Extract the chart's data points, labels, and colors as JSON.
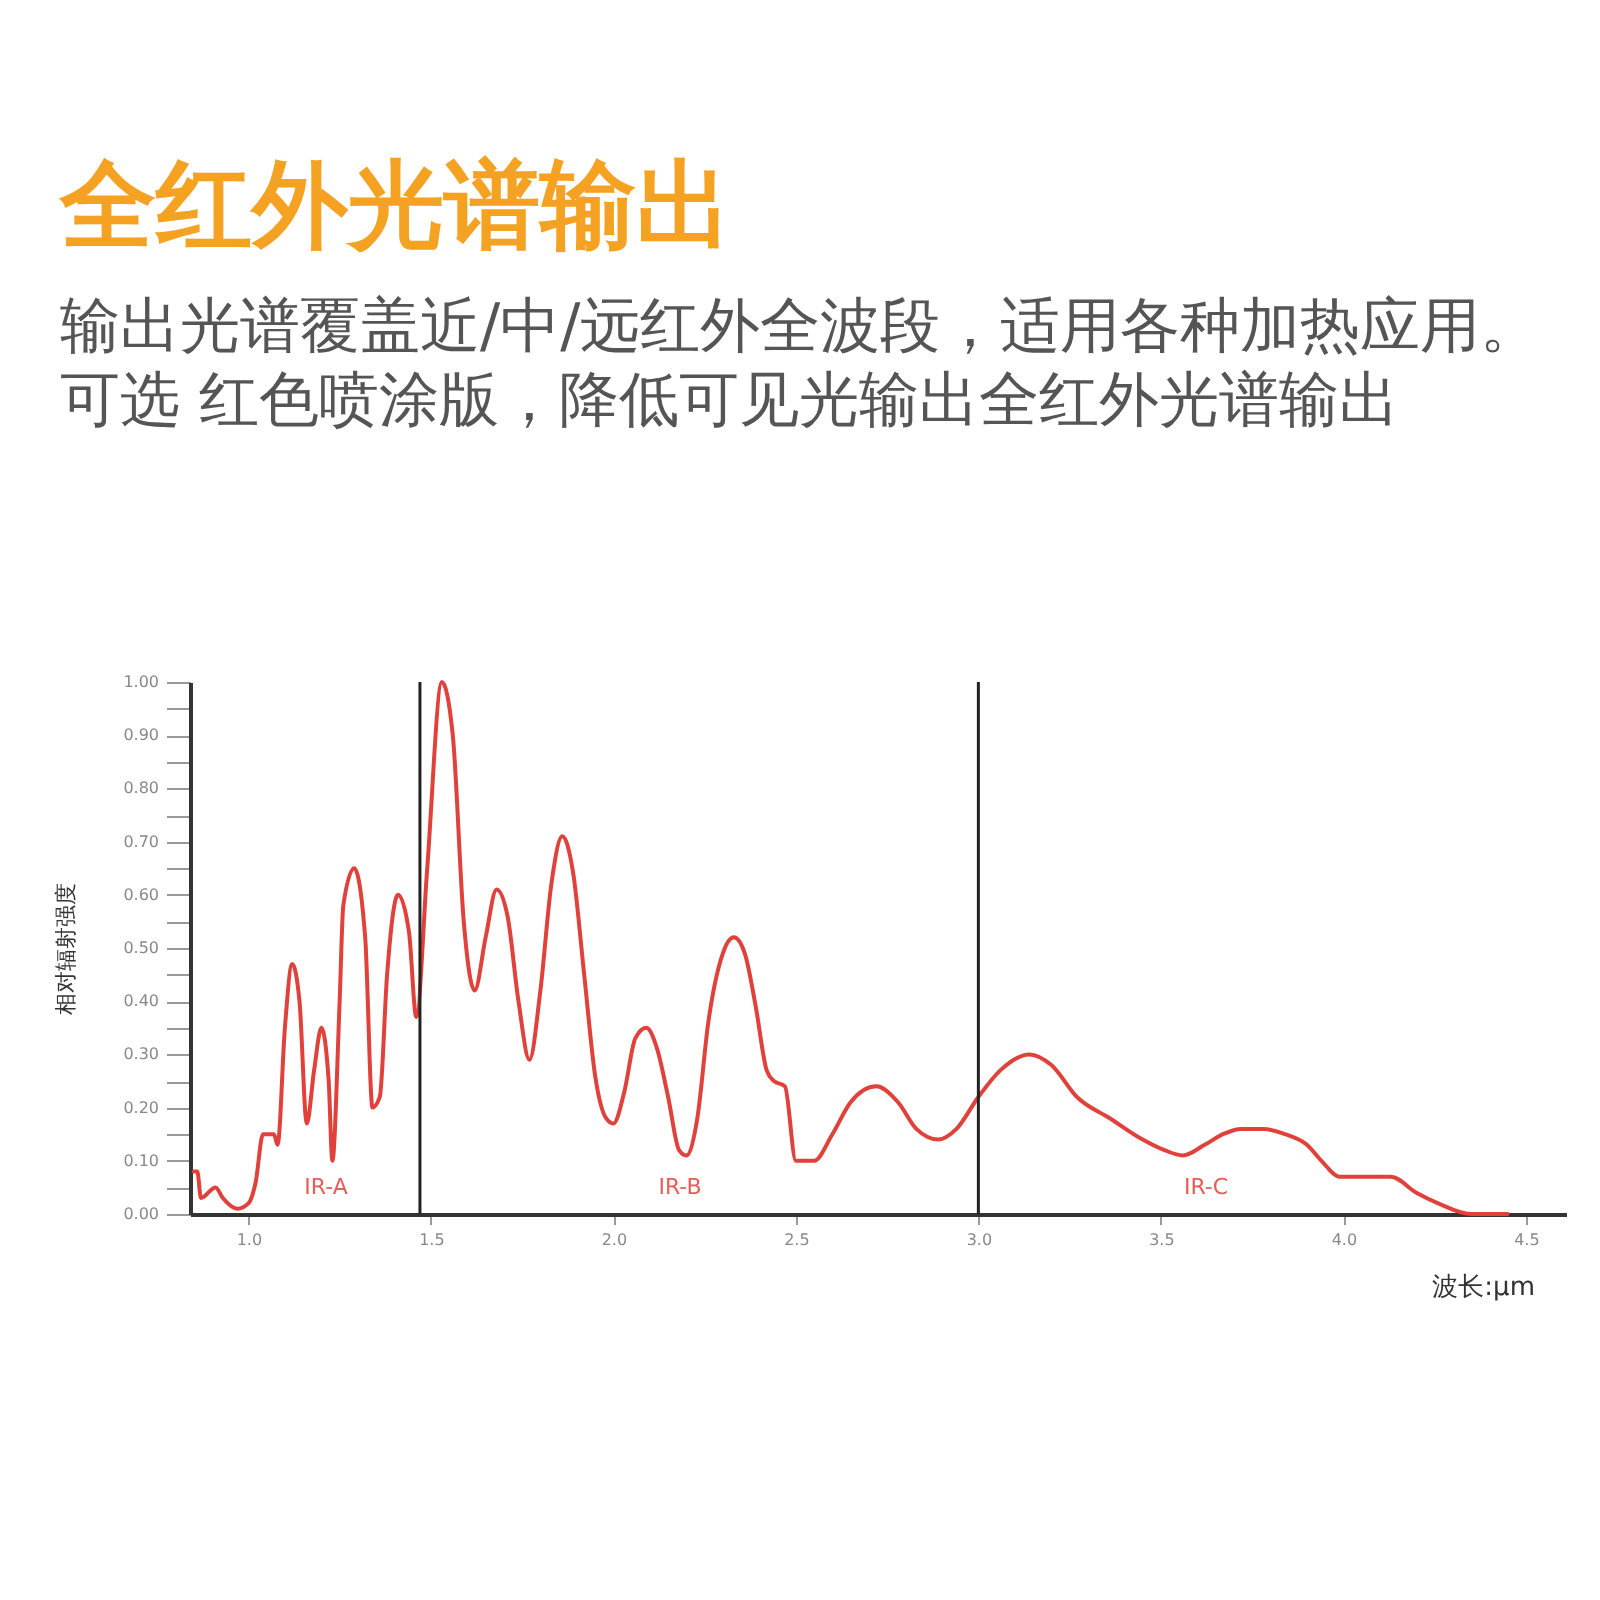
{
  "chart_data": {
    "type": "line",
    "title": "全红外光谱输出",
    "subtitle": "输出光谱覆盖近/中/远红外全波段，适用各种加热应用。可选 红色喷涂版，降低可见光输出全红外光谱输出",
    "xlabel": "波长:μm",
    "ylabel": "相对辐射强度",
    "color": "#e0413a",
    "x": [
      0.85,
      0.86,
      0.87,
      0.91,
      0.93,
      0.97,
      1.0,
      1.02,
      1.04,
      1.07,
      1.08,
      1.1,
      1.12,
      1.14,
      1.16,
      1.18,
      1.2,
      1.22,
      1.23,
      1.25,
      1.26,
      1.29,
      1.32,
      1.34,
      1.36,
      1.38,
      1.41,
      1.44,
      1.46,
      1.49,
      1.53,
      1.56,
      1.59,
      1.62,
      1.65,
      1.68,
      1.71,
      1.74,
      1.77,
      1.8,
      1.83,
      1.86,
      1.89,
      1.92,
      1.95,
      1.98,
      2.0,
      2.03,
      2.06,
      2.09,
      2.12,
      2.15,
      2.18,
      2.2,
      2.23,
      2.26,
      2.3,
      2.33,
      2.36,
      2.39,
      2.42,
      2.44,
      2.47,
      2.5,
      2.55,
      2.6,
      2.65,
      2.72,
      2.78,
      2.83,
      2.89,
      2.94,
      3.0,
      3.06,
      3.14,
      3.2,
      3.27,
      3.36,
      3.45,
      3.51,
      3.56,
      3.62,
      3.67,
      3.72,
      3.78,
      3.84,
      3.9,
      3.94,
      3.99,
      4.13,
      4.2,
      4.26,
      4.35,
      4.45
    ],
    "values": [
      0.08,
      0.08,
      0.03,
      0.05,
      0.03,
      0.01,
      0.02,
      0.06,
      0.15,
      0.15,
      0.13,
      0.35,
      0.47,
      0.4,
      0.17,
      0.27,
      0.35,
      0.25,
      0.1,
      0.4,
      0.58,
      0.65,
      0.52,
      0.2,
      0.22,
      0.45,
      0.6,
      0.53,
      0.37,
      0.65,
      1.0,
      0.9,
      0.55,
      0.42,
      0.52,
      0.61,
      0.56,
      0.4,
      0.29,
      0.42,
      0.62,
      0.71,
      0.64,
      0.45,
      0.26,
      0.18,
      0.17,
      0.23,
      0.33,
      0.35,
      0.31,
      0.22,
      0.12,
      0.11,
      0.18,
      0.36,
      0.49,
      0.52,
      0.49,
      0.39,
      0.27,
      0.25,
      0.24,
      0.1,
      0.1,
      0.15,
      0.21,
      0.24,
      0.21,
      0.16,
      0.14,
      0.16,
      0.22,
      0.27,
      0.3,
      0.28,
      0.22,
      0.18,
      0.14,
      0.12,
      0.11,
      0.13,
      0.15,
      0.16,
      0.16,
      0.15,
      0.13,
      0.1,
      0.07,
      0.07,
      0.04,
      0.02,
      0.0,
      0.0
    ],
    "xlim": [
      0.84,
      4.61
    ],
    "xticks": [
      {
        "value": 1,
        "label": "1.0"
      },
      1.5,
      {
        "value": 2,
        "label": "2.0"
      },
      2.5,
      {
        "value": 3,
        "label": "3.0"
      },
      3.5,
      {
        "value": 4,
        "label": "4.0"
      },
      4.5
    ],
    "ylim": [
      0,
      1
    ],
    "yticks": [
      {
        "value": 0,
        "label": "0.00"
      },
      {
        "value": 0.05,
        "label": null
      },
      {
        "value": 0.1,
        "label": "0.10"
      },
      {
        "value": 0.15,
        "label": null
      },
      {
        "value": 0.2,
        "label": "0.20"
      },
      {
        "value": 0.25,
        "label": null
      },
      {
        "value": 0.3,
        "label": "0.30"
      },
      {
        "value": 0.35,
        "label": null
      },
      {
        "value": 0.4,
        "label": "0.40"
      },
      {
        "value": 0.45,
        "label": null
      },
      {
        "value": 0.5,
        "label": "0.50"
      },
      {
        "value": 0.55,
        "label": null
      },
      {
        "value": 0.6,
        "label": "0.60"
      },
      {
        "value": 0.65,
        "label": null
      },
      {
        "value": 0.7,
        "label": "0.70"
      },
      {
        "value": 0.75,
        "label": null
      },
      {
        "value": 0.8,
        "label": "0.80"
      },
      {
        "value": 0.85,
        "label": null
      },
      {
        "value": 0.9,
        "label": "0.90"
      },
      {
        "value": 0.95,
        "label": null
      },
      {
        "value": 1,
        "label": "1.00"
      }
    ],
    "ref_lines": [
      {
        "axis": "x",
        "value": 1.47,
        "color": "#222222"
      },
      {
        "axis": "x",
        "value": 3.0,
        "color": "#222222"
      }
    ],
    "annotations": [
      "IR-A",
      "IR-B",
      "IR-C"
    ]
  }
}
